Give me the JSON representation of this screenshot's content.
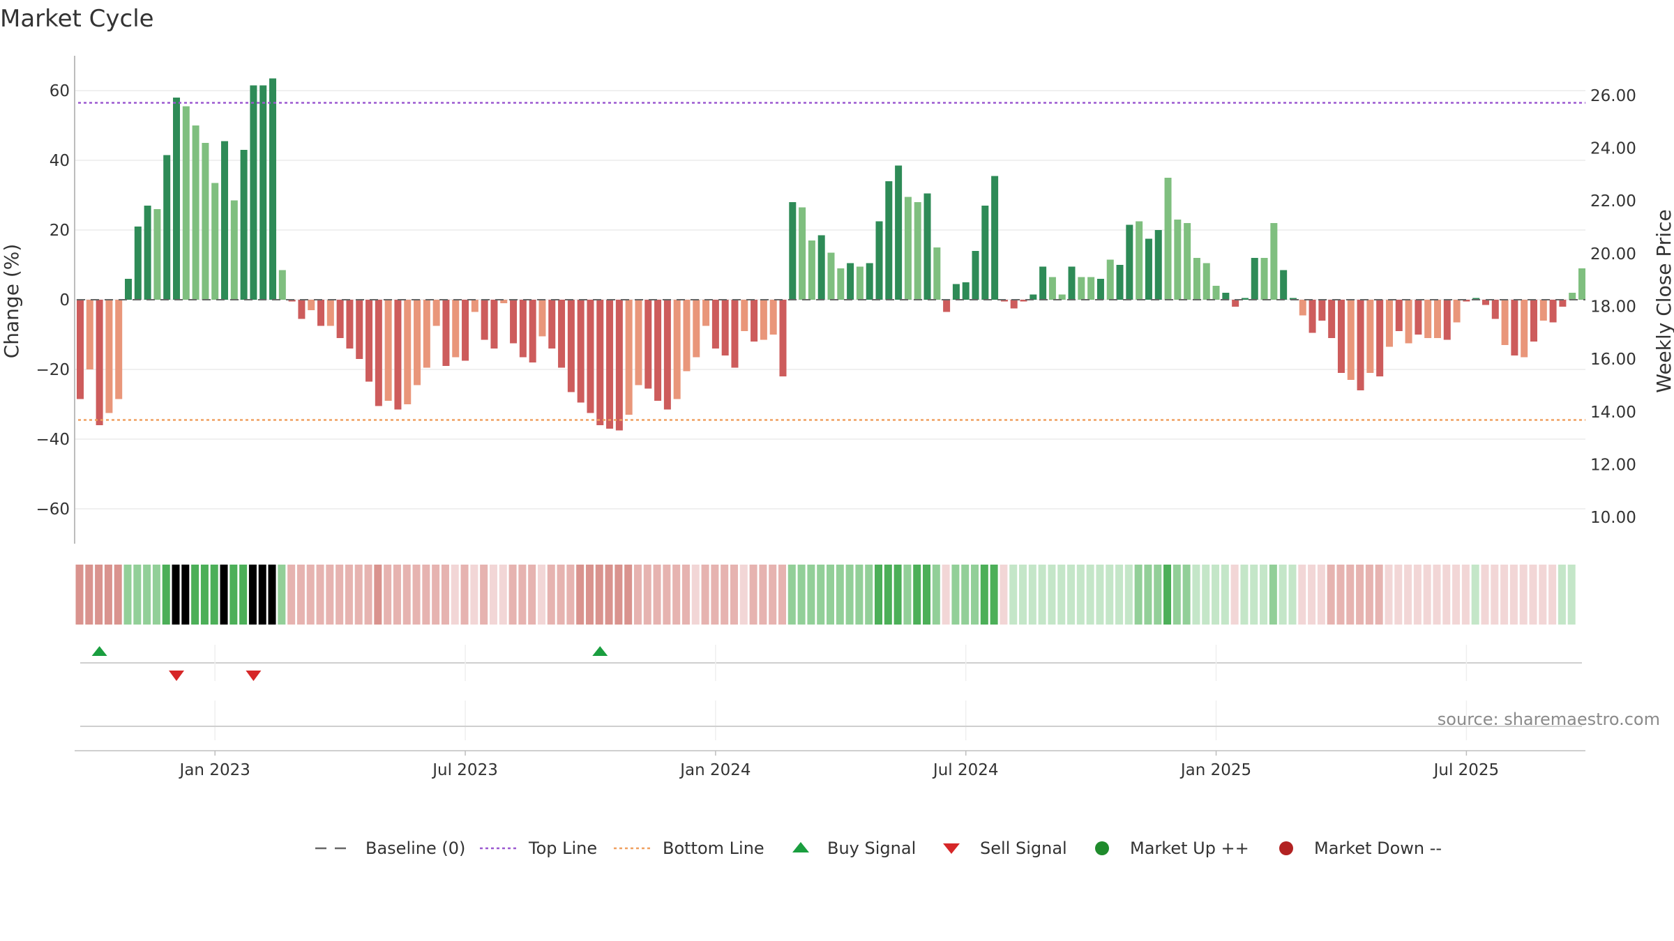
{
  "chart_data": {
    "type": "bar",
    "title": "Market Cycle",
    "ylabel_left": "Change (%)",
    "ylabel_right": "Weekly Close Price",
    "ylim_left": [
      -70,
      70
    ],
    "yticks_left": [
      60,
      40,
      20,
      0,
      -20,
      -40,
      -60
    ],
    "ytick_labels_left": [
      "60",
      "40",
      "20",
      "0",
      "−20",
      "−40",
      "−60"
    ],
    "ylim_right": [
      9.0,
      27.5
    ],
    "yticks_right": [
      26,
      24,
      22,
      20,
      18,
      16,
      14,
      12,
      10
    ],
    "ytick_labels_right": [
      "26.00",
      "24.00",
      "22.00",
      "20.00",
      "18.00",
      "16.00",
      "14.00",
      "12.00",
      "10.00"
    ],
    "x_ticks": [
      {
        "label": "Jan 2023",
        "week": 14
      },
      {
        "label": "Jul 2023",
        "week": 40
      },
      {
        "label": "Jan 2024",
        "week": 66
      },
      {
        "label": "Jul 2024",
        "week": 92
      },
      {
        "label": "Jan 2025",
        "week": 118
      },
      {
        "label": "Jul 2025",
        "week": 144
      }
    ],
    "top_line": 56.5,
    "bottom_line": -34.5,
    "values": [
      -28.5,
      -20,
      -36,
      -32.5,
      -28.5,
      6,
      21,
      27,
      26,
      41.5,
      58,
      55.5,
      50,
      45,
      33.5,
      45.5,
      28.5,
      43,
      61.5,
      61.5,
      63.5,
      8.5,
      -0.5,
      -5.5,
      -3,
      -7.5,
      -7.5,
      -11,
      -14,
      -17,
      -23.5,
      -30.5,
      -29,
      -31.5,
      -30,
      -24.5,
      -19.5,
      -7.5,
      -19,
      -16.5,
      -17.5,
      -3.5,
      -11.5,
      -14,
      -1,
      -12.5,
      -16.5,
      -18,
      -10.5,
      -14,
      -19.5,
      -26.5,
      -29.5,
      -32.5,
      -36,
      -37,
      -37.5,
      -33,
      -24.5,
      -25.5,
      -29,
      -31.5,
      -28.5,
      -20.5,
      -16.5,
      -7.5,
      -14,
      -16,
      -19.5,
      -9,
      -12,
      -11.5,
      -10,
      -22,
      28,
      26.5,
      17,
      18.5,
      13.5,
      9,
      10.5,
      9.5,
      10.5,
      22.5,
      34,
      38.5,
      29.5,
      28,
      30.5,
      15,
      -3.5,
      4.5,
      5,
      14,
      27,
      35.5,
      -0.5,
      -2.5,
      -0.5,
      1.5,
      9.5,
      6.5,
      1.5,
      9.5,
      6.5,
      6.5,
      6,
      11.5,
      10,
      21.5,
      22.5,
      17.5,
      20,
      35,
      23,
      22,
      12,
      10.5,
      4,
      2,
      -2,
      0.5,
      12,
      12,
      22,
      8.5,
      0.5,
      -4.5,
      -9.5,
      -6,
      -11,
      -21,
      -23,
      -26,
      -21,
      -22,
      -13.5,
      -9,
      -12.5,
      -10,
      -11,
      -11,
      -11.5,
      -6.5,
      -0.5,
      0.5,
      -1.5,
      -5.5,
      -13,
      -16,
      -16.5,
      -12,
      -6,
      -6.5,
      -2,
      2,
      9
    ],
    "bar_shades": [
      "dark",
      "light",
      "dark",
      "light",
      "light",
      "dark",
      "dark",
      "dark",
      "light",
      "dark",
      "dark",
      "light",
      "light",
      "light",
      "light",
      "dark",
      "light",
      "dark",
      "dark",
      "dark",
      "dark",
      "light",
      "dark",
      "dark",
      "light",
      "dark",
      "light",
      "dark",
      "dark",
      "dark",
      "dark",
      "dark",
      "light",
      "dark",
      "light",
      "light",
      "light",
      "light",
      "dark",
      "light",
      "dark",
      "light",
      "dark",
      "dark",
      "light",
      "dark",
      "dark",
      "dark",
      "light",
      "dark",
      "dark",
      "dark",
      "dark",
      "dark",
      "dark",
      "dark",
      "dark",
      "light",
      "light",
      "dark",
      "dark",
      "dark",
      "light",
      "light",
      "light",
      "light",
      "dark",
      "dark",
      "dark",
      "light",
      "dark",
      "light",
      "light",
      "dark",
      "dark",
      "light",
      "light",
      "dark",
      "light",
      "light",
      "dark",
      "light",
      "dark",
      "dark",
      "dark",
      "dark",
      "light",
      "light",
      "dark",
      "light",
      "dark",
      "dark",
      "dark",
      "dark",
      "dark",
      "dark",
      "dark",
      "dark",
      "dark",
      "dark",
      "dark",
      "light",
      "light",
      "dark",
      "light",
      "light",
      "dark",
      "light",
      "dark",
      "dark",
      "light",
      "dark",
      "dark",
      "light",
      "light",
      "light",
      "light",
      "light",
      "light",
      "dark",
      "dark",
      "dark",
      "dark",
      "light",
      "light",
      "dark",
      "dark",
      "light",
      "dark",
      "dark",
      "dark",
      "dark",
      "light",
      "dark",
      "light",
      "dark",
      "light",
      "dark",
      "light",
      "dark",
      "light",
      "light",
      "dark",
      "light",
      "dark",
      "dark",
      "dark",
      "dark",
      "light",
      "dark",
      "light",
      "dark",
      "light",
      "dark",
      "dark"
    ],
    "heat_strip": [
      [
        "r",
        2
      ],
      [
        "r",
        2
      ],
      [
        "r",
        2
      ],
      [
        "r",
        2
      ],
      [
        "r",
        2
      ],
      [
        "g",
        1
      ],
      [
        "g",
        1
      ],
      [
        "g",
        1
      ],
      [
        "g",
        1
      ],
      [
        "g",
        2
      ],
      [
        "g",
        3
      ],
      [
        "g",
        3
      ],
      [
        "g",
        2
      ],
      [
        "g",
        2
      ],
      [
        "g",
        2
      ],
      [
        "g",
        3
      ],
      [
        "g",
        2
      ],
      [
        "g",
        2
      ],
      [
        "g",
        3
      ],
      [
        "g",
        3
      ],
      [
        "g",
        3
      ],
      [
        "g",
        1
      ],
      [
        "r",
        1
      ],
      [
        "r",
        1
      ],
      [
        "r",
        1
      ],
      [
        "r",
        1
      ],
      [
        "r",
        1
      ],
      [
        "r",
        1
      ],
      [
        "r",
        1
      ],
      [
        "r",
        1
      ],
      [
        "r",
        1
      ],
      [
        "r",
        2
      ],
      [
        "r",
        1
      ],
      [
        "r",
        1
      ],
      [
        "r",
        1
      ],
      [
        "r",
        1
      ],
      [
        "r",
        1
      ],
      [
        "r",
        1
      ],
      [
        "r",
        1
      ],
      [
        "r",
        0
      ],
      [
        "r",
        1
      ],
      [
        "r",
        0
      ],
      [
        "r",
        1
      ],
      [
        "r",
        0
      ],
      [
        "r",
        0
      ],
      [
        "r",
        1
      ],
      [
        "r",
        1
      ],
      [
        "r",
        1
      ],
      [
        "r",
        0
      ],
      [
        "r",
        1
      ],
      [
        "r",
        1
      ],
      [
        "r",
        1
      ],
      [
        "r",
        2
      ],
      [
        "r",
        2
      ],
      [
        "r",
        2
      ],
      [
        "r",
        2
      ],
      [
        "r",
        2
      ],
      [
        "r",
        2
      ],
      [
        "r",
        1
      ],
      [
        "r",
        1
      ],
      [
        "r",
        1
      ],
      [
        "r",
        1
      ],
      [
        "r",
        1
      ],
      [
        "r",
        1
      ],
      [
        "r",
        0
      ],
      [
        "r",
        1
      ],
      [
        "r",
        1
      ],
      [
        "r",
        1
      ],
      [
        "r",
        1
      ],
      [
        "r",
        0
      ],
      [
        "r",
        1
      ],
      [
        "r",
        1
      ],
      [
        "r",
        1
      ],
      [
        "r",
        1
      ],
      [
        "g",
        1
      ],
      [
        "g",
        1
      ],
      [
        "g",
        1
      ],
      [
        "g",
        1
      ],
      [
        "g",
        1
      ],
      [
        "g",
        1
      ],
      [
        "g",
        1
      ],
      [
        "g",
        1
      ],
      [
        "g",
        1
      ],
      [
        "g",
        2
      ],
      [
        "g",
        2
      ],
      [
        "g",
        2
      ],
      [
        "g",
        1
      ],
      [
        "g",
        2
      ],
      [
        "g",
        2
      ],
      [
        "g",
        1
      ],
      [
        "r",
        0
      ],
      [
        "g",
        1
      ],
      [
        "g",
        1
      ],
      [
        "g",
        1
      ],
      [
        "g",
        2
      ],
      [
        "g",
        2
      ],
      [
        "r",
        0
      ],
      [
        "g",
        0
      ],
      [
        "g",
        0
      ],
      [
        "g",
        0
      ],
      [
        "g",
        0
      ],
      [
        "g",
        0
      ],
      [
        "g",
        0
      ],
      [
        "g",
        0
      ],
      [
        "g",
        0
      ],
      [
        "g",
        0
      ],
      [
        "g",
        0
      ],
      [
        "g",
        0
      ],
      [
        "g",
        0
      ],
      [
        "g",
        0
      ],
      [
        "g",
        1
      ],
      [
        "g",
        1
      ],
      [
        "g",
        1
      ],
      [
        "g",
        2
      ],
      [
        "g",
        1
      ],
      [
        "g",
        1
      ],
      [
        "g",
        0
      ],
      [
        "g",
        0
      ],
      [
        "g",
        0
      ],
      [
        "g",
        0
      ],
      [
        "r",
        0
      ],
      [
        "g",
        0
      ],
      [
        "g",
        0
      ],
      [
        "g",
        0
      ],
      [
        "g",
        1
      ],
      [
        "g",
        0
      ],
      [
        "g",
        0
      ],
      [
        "r",
        0
      ],
      [
        "r",
        0
      ],
      [
        "r",
        0
      ],
      [
        "r",
        1
      ],
      [
        "r",
        1
      ],
      [
        "r",
        1
      ],
      [
        "r",
        1
      ],
      [
        "r",
        1
      ],
      [
        "r",
        1
      ],
      [
        "r",
        0
      ],
      [
        "r",
        0
      ],
      [
        "r",
        0
      ],
      [
        "r",
        0
      ],
      [
        "r",
        0
      ],
      [
        "r",
        0
      ],
      [
        "r",
        0
      ],
      [
        "r",
        0
      ],
      [
        "r",
        0
      ],
      [
        "g",
        0
      ],
      [
        "r",
        0
      ],
      [
        "r",
        0
      ],
      [
        "r",
        0
      ],
      [
        "r",
        0
      ],
      [
        "r",
        0
      ],
      [
        "r",
        0
      ],
      [
        "r",
        0
      ],
      [
        "r",
        0
      ],
      [
        "g",
        0
      ],
      [
        "g",
        0
      ]
    ],
    "buy_signals": [
      2,
      54
    ],
    "sell_signals": [
      10,
      18
    ],
    "legend": [
      {
        "label": "Baseline (0)",
        "symbol": "dash"
      },
      {
        "label": "Top Line",
        "symbol": "dot-purple"
      },
      {
        "label": "Bottom Line",
        "symbol": "dot-orange"
      },
      {
        "label": "Buy Signal",
        "symbol": "triangle-up"
      },
      {
        "label": "Sell Signal",
        "symbol": "triangle-down"
      },
      {
        "label": "Market Up ++",
        "symbol": "circle-green"
      },
      {
        "label": "Market Down --",
        "symbol": "circle-red"
      }
    ],
    "colors": {
      "pos_dark": "#2e8b57",
      "pos_light": "#7fbf7f",
      "neg_dark": "#cd5c5c",
      "neg_light": "#e9967a",
      "top_line": "#9b59d0",
      "bottom_line": "#f0a060",
      "buy": "#1a9e3f",
      "sell": "#d62728",
      "market_up": "#1f8b2c",
      "market_down": "#b22222",
      "baseline": "#666666",
      "heat_red": [
        "#f2d6d6",
        "#e6b3b0",
        "#d9938e"
      ],
      "heat_green": [
        "#c4e6c8",
        "#92cf98",
        "#4caf58"
      ]
    }
  },
  "source_text": "source: sharemaestro.com"
}
